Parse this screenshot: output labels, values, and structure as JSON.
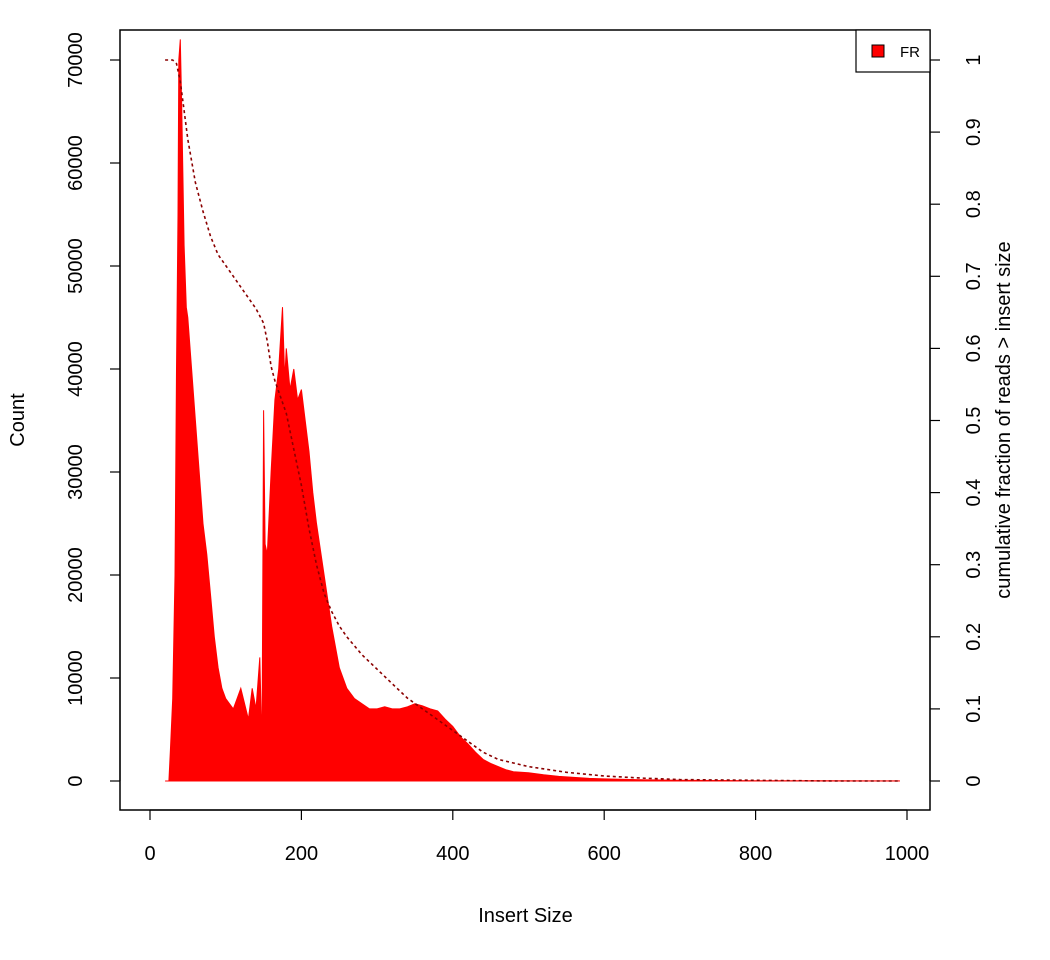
{
  "chart_data": {
    "type": "area",
    "title": "",
    "xlabel": "Insert Size",
    "ylabel": "Count",
    "y2label": "cumulative fraction of reads > insert size",
    "xlim": [
      0,
      1000
    ],
    "ylim": [
      0,
      70000
    ],
    "y2lim": [
      0,
      1
    ],
    "xticks": [
      0,
      200,
      400,
      600,
      800,
      1000
    ],
    "yticks": [
      0,
      10000,
      20000,
      30000,
      40000,
      50000,
      60000,
      70000
    ],
    "y2ticks": [
      0,
      0.1,
      0.2,
      0.3,
      0.4,
      0.5,
      0.6,
      0.7,
      0.8,
      0.9,
      1
    ],
    "y2tick_labels": [
      "0",
      "0.1",
      "0.2",
      "0.3",
      "0.4",
      "0.5",
      "0.6",
      "0.7",
      "0.8",
      "0.9",
      "1"
    ],
    "grid": false,
    "legend": {
      "position": "top-right",
      "entries": [
        {
          "label": "FR",
          "color": "#ff0000"
        }
      ]
    },
    "colors": {
      "histogram": "#ff0000",
      "cumulative": "#8b0000"
    },
    "series": [
      {
        "name": "FR",
        "kind": "histogram",
        "x": [
          20,
          25,
          27,
          30,
          33,
          35,
          37,
          38,
          40,
          42,
          45,
          48,
          50,
          55,
          60,
          65,
          70,
          75,
          80,
          85,
          90,
          95,
          100,
          105,
          110,
          115,
          120,
          125,
          130,
          135,
          140,
          145,
          148,
          150,
          152,
          155,
          160,
          165,
          170,
          175,
          178,
          180,
          185,
          190,
          195,
          200,
          205,
          210,
          215,
          220,
          230,
          240,
          250,
          260,
          270,
          280,
          290,
          300,
          310,
          320,
          330,
          340,
          350,
          360,
          370,
          380,
          390,
          400,
          410,
          420,
          430,
          440,
          450,
          460,
          470,
          480,
          500,
          520,
          540,
          560,
          580,
          600,
          650,
          700,
          750,
          800,
          850,
          900,
          950,
          990
        ],
        "y": [
          0,
          0,
          3000,
          8000,
          20000,
          40000,
          55000,
          70000,
          72000,
          65000,
          52000,
          46000,
          45000,
          40000,
          35000,
          30000,
          25000,
          22000,
          18000,
          14000,
          11000,
          9000,
          8000,
          7500,
          7000,
          8000,
          9000,
          7500,
          6000,
          9000,
          7000,
          12000,
          3000,
          36000,
          23000,
          22000,
          30000,
          37000,
          40000,
          46000,
          39000,
          42000,
          38000,
          40000,
          37000,
          38000,
          35000,
          32000,
          28000,
          25000,
          20000,
          15000,
          11000,
          9000,
          8000,
          7500,
          7000,
          7000,
          7200,
          7000,
          7000,
          7200,
          7500,
          7300,
          7000,
          6800,
          6000,
          5300,
          4300,
          3600,
          2800,
          2100,
          1700,
          1400,
          1100,
          900,
          800,
          600,
          450,
          350,
          250,
          200,
          120,
          80,
          50,
          30,
          20,
          15,
          10,
          5
        ]
      },
      {
        "name": "",
        "kind": "cumulative",
        "x": [
          20,
          30,
          35,
          40,
          45,
          50,
          60,
          70,
          80,
          90,
          100,
          110,
          120,
          130,
          140,
          150,
          155,
          160,
          165,
          170,
          180,
          190,
          200,
          210,
          220,
          230,
          240,
          250,
          260,
          280,
          300,
          320,
          340,
          360,
          380,
          400,
          420,
          440,
          460,
          480,
          500,
          550,
          600,
          650,
          700,
          800,
          900,
          990
        ],
        "y": [
          1.0,
          1.0,
          0.995,
          0.97,
          0.93,
          0.89,
          0.83,
          0.79,
          0.755,
          0.73,
          0.715,
          0.7,
          0.685,
          0.67,
          0.655,
          0.635,
          0.61,
          0.575,
          0.555,
          0.54,
          0.51,
          0.46,
          0.41,
          0.35,
          0.3,
          0.26,
          0.235,
          0.215,
          0.2,
          0.175,
          0.155,
          0.135,
          0.115,
          0.1,
          0.085,
          0.07,
          0.055,
          0.04,
          0.03,
          0.025,
          0.02,
          0.012,
          0.007,
          0.004,
          0.002,
          0.001,
          0.0,
          0.0
        ]
      }
    ]
  }
}
